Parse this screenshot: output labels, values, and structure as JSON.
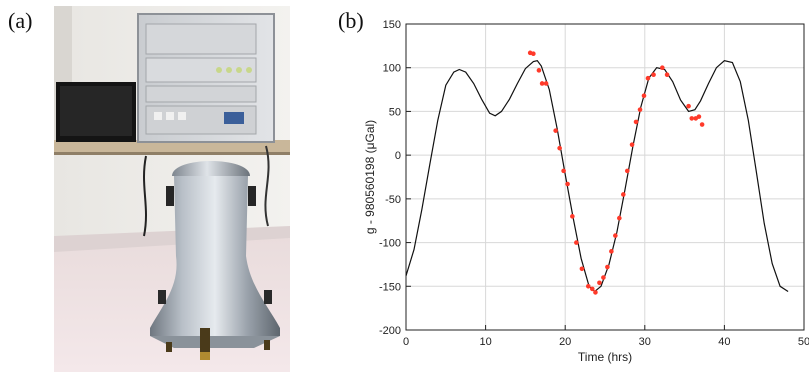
{
  "panels": {
    "a_label": "(a)",
    "b_label": "(b)"
  },
  "photo": {
    "subject": "Gravimeter instrument cone with electronics rack on shelf"
  },
  "colors": {
    "model_line": "#111111",
    "data_points": "#ff3a2a",
    "grid": "#d8d8d8"
  },
  "chart_data": {
    "type": "line",
    "xlabel": "Time  (hrs)",
    "ylabel": "g - 980560198  (μGal)",
    "xlim": [
      0,
      50
    ],
    "ylim": [
      -200,
      150
    ],
    "x_ticks": [
      0,
      10,
      20,
      30,
      40,
      50
    ],
    "y_ticks": [
      -200,
      -150,
      -100,
      -50,
      0,
      50,
      100,
      150
    ],
    "grid": true,
    "series": [
      {
        "kind": "line",
        "x": [
          0,
          1,
          2,
          3,
          4,
          5,
          6,
          6.7,
          7.5,
          8.5,
          9.5,
          10.5,
          11.2,
          12,
          13,
          14,
          15,
          16,
          16.5,
          17,
          18,
          19,
          20,
          21,
          22,
          23,
          23.7,
          24.5,
          25.5,
          26.5,
          27.5,
          28.5,
          29.5,
          30.5,
          31.5,
          32.5,
          33.5,
          34.5,
          35.5,
          36.3,
          37,
          38,
          39,
          40,
          41,
          42,
          43,
          44,
          45,
          46,
          47,
          48
        ],
        "y": [
          -138,
          -108,
          -62,
          -10,
          40,
          80,
          95,
          98,
          95,
          82,
          64,
          48,
          45,
          50,
          64,
          82,
          99,
          107,
          108,
          102,
          75,
          30,
          -22,
          -72,
          -118,
          -150,
          -156,
          -150,
          -125,
          -88,
          -40,
          10,
          55,
          88,
          100,
          98,
          84,
          63,
          50,
          52,
          62,
          82,
          100,
          108,
          106,
          84,
          40,
          -18,
          -78,
          -124,
          -150,
          -156
        ]
      },
      {
        "kind": "scatter",
        "x": [
          15.6,
          16,
          16.7,
          17.1,
          17.6,
          18.8,
          19.3,
          19.8,
          20.3,
          20.9,
          21.4,
          22.1,
          22.9,
          23.4,
          23.8,
          24.3,
          24.8,
          25.3,
          25.8,
          26.3,
          26.8,
          27.3,
          27.8,
          28.4,
          28.9,
          29.4,
          29.9,
          30.4,
          31.1,
          32.2,
          32.8,
          35.5,
          35.9,
          36.4,
          36.8,
          37.2
        ],
        "y": [
          117,
          116,
          97,
          82,
          82,
          28,
          8,
          -18,
          -33,
          -70,
          -100,
          -130,
          -150,
          -153,
          -157,
          -146,
          -140,
          -128,
          -110,
          -92,
          -72,
          -45,
          -18,
          12,
          38,
          52,
          68,
          88,
          92,
          100,
          92,
          56,
          42,
          42,
          44,
          35
        ]
      }
    ]
  }
}
